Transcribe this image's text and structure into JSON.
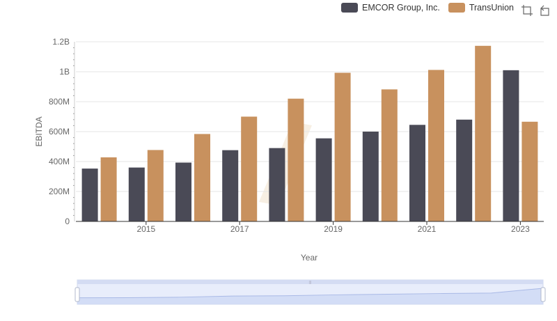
{
  "legend": {
    "items": [
      {
        "label": "EMCOR Group, Inc.",
        "color": "#4a4a56"
      },
      {
        "label": "TransUnion",
        "color": "#c8915e"
      }
    ]
  },
  "toolbox": {
    "icons": [
      "zoom-icon",
      "restore-icon"
    ]
  },
  "chart_data": {
    "type": "bar",
    "categories": [
      "2014",
      "2015",
      "2016",
      "2017",
      "2018",
      "2019",
      "2020",
      "2021",
      "2022",
      "2023"
    ],
    "x_tick_labels": [
      "2015",
      "2017",
      "2019",
      "2021",
      "2023"
    ],
    "y_tick_labels": [
      "0",
      "200M",
      "400M",
      "600M",
      "800M",
      "1B",
      "1.2B"
    ],
    "series": [
      {
        "name": "EMCOR Group, Inc.",
        "color": "#4a4a56",
        "values": [
          353000000,
          360000000,
          393000000,
          476000000,
          490000000,
          555000000,
          600000000,
          645000000,
          680000000,
          1010000000
        ]
      },
      {
        "name": "TransUnion",
        "color": "#c8915e",
        "values": [
          428000000,
          477000000,
          584000000,
          700000000,
          820000000,
          993000000,
          882000000,
          1012000000,
          1173000000,
          666000000
        ]
      }
    ],
    "xlabel": "Year",
    "ylabel": "EBITDA",
    "ylim": [
      0,
      1200000000
    ],
    "grid": true,
    "legend_position": "top-right"
  }
}
